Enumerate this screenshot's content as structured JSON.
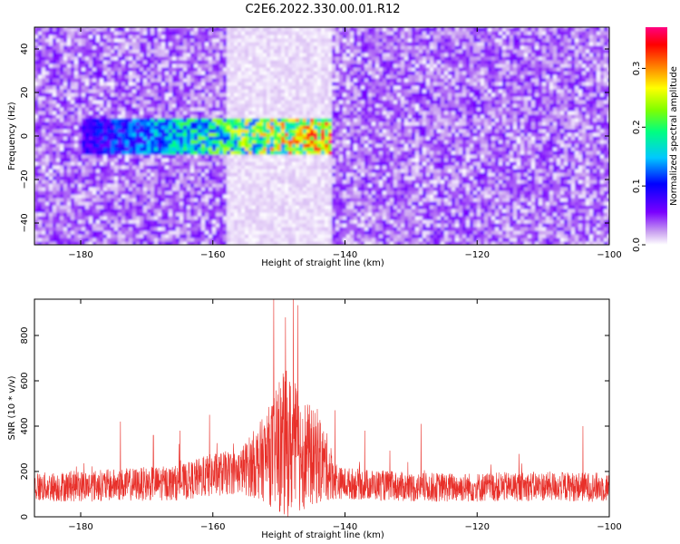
{
  "figure": {
    "title": "C2E6.2022.330.00.01.R12"
  },
  "chart_data": [
    {
      "type": "heatmap",
      "xlabel": "Height of straight line (km)",
      "ylabel": "Frequency (Hz)",
      "xlim": [
        -187,
        -100
      ],
      "ylim": [
        -50,
        50
      ],
      "xticks": [
        -180,
        -160,
        -140,
        -120,
        -100
      ],
      "yticks": [
        -40,
        -20,
        0,
        20,
        40
      ],
      "colorbar": {
        "label": "Normalized spectral amplitude",
        "range": [
          0.0,
          0.37
        ],
        "ticks": [
          0.0,
          0.1,
          0.2,
          0.3
        ],
        "colormap": [
          "#ffffff",
          "#c9a0f0",
          "#7a00ff",
          "#0000ff",
          "#00c8ff",
          "#00ff80",
          "#80ff00",
          "#ffff00",
          "#ff8000",
          "#ff0000",
          "#ff0080"
        ]
      },
      "features": [
        {
          "description": "low-amplitude gap",
          "x_range": [
            -158,
            -142
          ],
          "y_range": [
            -50,
            50
          ]
        },
        {
          "description": "high-amplitude band",
          "x_range": [
            -180,
            -142
          ],
          "y_range": [
            -10,
            8
          ],
          "peak_x": -148,
          "peak_y": 0,
          "peak_value": 0.35
        }
      ]
    },
    {
      "type": "line",
      "xlabel": "Height of straight line (km)",
      "ylabel": "SNR (10 * v/v)",
      "xlim": [
        -187,
        -100
      ],
      "ylim": [
        0,
        960
      ],
      "xticks": [
        -180,
        -160,
        -140,
        -120,
        -100
      ],
      "yticks": [
        0,
        200,
        400,
        600,
        800
      ],
      "line_color": "#e8302a",
      "envelope": [
        {
          "x": -187,
          "base": 130,
          "spread": 100
        },
        {
          "x": -175,
          "base": 140,
          "spread": 110
        },
        {
          "x": -165,
          "base": 150,
          "spread": 120
        },
        {
          "x": -160,
          "base": 185,
          "spread": 150
        },
        {
          "x": -156,
          "base": 200,
          "spread": 150
        },
        {
          "x": -152,
          "base": 260,
          "spread": 300
        },
        {
          "x": -149,
          "base": 320,
          "spread": 520
        },
        {
          "x": -146,
          "base": 280,
          "spread": 380
        },
        {
          "x": -143,
          "base": 230,
          "spread": 250
        },
        {
          "x": -141,
          "base": 150,
          "spread": 110
        },
        {
          "x": -130,
          "base": 130,
          "spread": 100
        },
        {
          "x": -120,
          "base": 130,
          "spread": 100
        },
        {
          "x": -110,
          "base": 135,
          "spread": 100
        },
        {
          "x": -100,
          "base": 130,
          "spread": 100
        }
      ],
      "peaks": [
        {
          "x": -150.8,
          "y": 960
        },
        {
          "x": -147.8,
          "y": 960
        },
        {
          "x": -149.0,
          "y": 880
        },
        {
          "x": -160.5,
          "y": 450
        },
        {
          "x": -174.0,
          "y": 420
        },
        {
          "x": -141.5,
          "y": 470
        },
        {
          "x": -137.0,
          "y": 380
        },
        {
          "x": -128.5,
          "y": 410
        },
        {
          "x": -104.0,
          "y": 400
        },
        {
          "x": -169.0,
          "y": 360
        },
        {
          "x": -165.0,
          "y": 380
        }
      ]
    }
  ]
}
